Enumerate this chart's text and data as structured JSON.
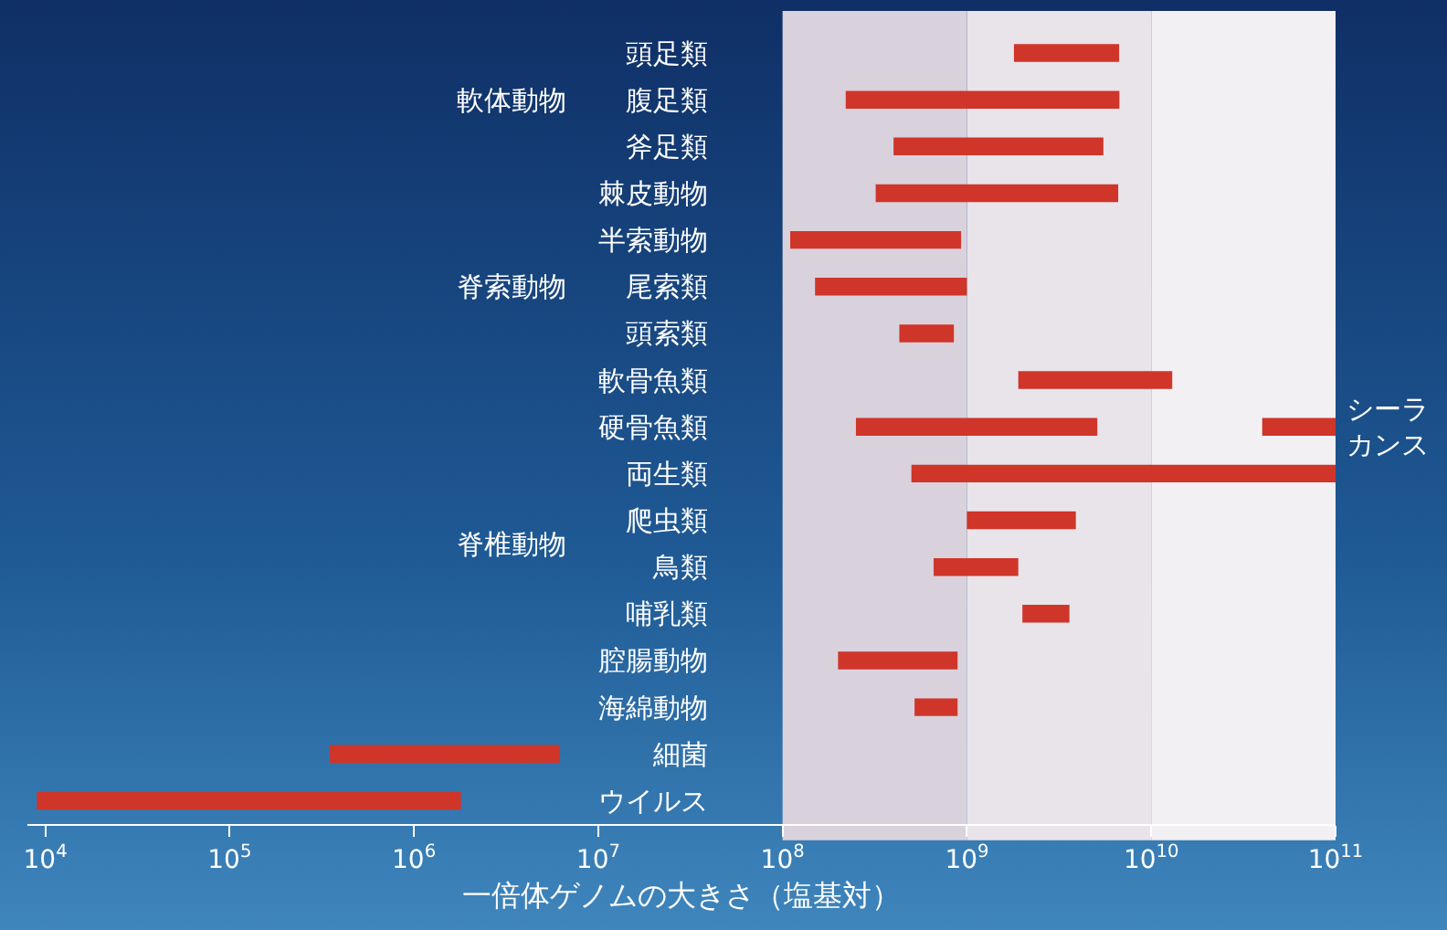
{
  "chart_data": {
    "type": "bar",
    "orientation": "horizontal",
    "log": "x",
    "xlabel": "一倍体ゲノムの大きさ（塩基対）",
    "categories": [
      "頭足類",
      "腹足類",
      "斧足類",
      "棘皮動物",
      "半索動物",
      "尾索類",
      "頭索類",
      "軟骨魚類",
      "硬骨魚類",
      "両生類",
      "爬虫類",
      "鳥類",
      "哺乳類",
      "腔腸動物",
      "海綿動物",
      "細菌",
      "ウイルス"
    ],
    "series": [
      {
        "color": "#d0352a",
        "base": [
          1800000000,
          220000000,
          400000000,
          320000000,
          110000000,
          150000000,
          430000000,
          1900000000,
          250000000,
          500000000,
          1000000000,
          660000000,
          2000000000,
          200000000,
          520000000,
          350000,
          9000
        ],
        "values": [
          4900000000,
          6500000000,
          5100000000,
          6300000000,
          820000000,
          850000000,
          420000000,
          11100000000,
          4850000000,
          99500000000,
          2900000000,
          1240000000,
          1600000000,
          690000000,
          370000000,
          5850000,
          1791000
        ]
      },
      {
        "name": "シーラカンス",
        "color": "#d0352a",
        "base": [
          null,
          null,
          null,
          null,
          null,
          null,
          null,
          null,
          40000000000,
          null,
          null,
          null,
          null,
          null,
          null,
          null,
          null
        ],
        "values": [
          null,
          null,
          null,
          null,
          null,
          null,
          null,
          null,
          60000000000,
          null,
          null,
          null,
          null,
          null,
          null,
          null,
          null
        ]
      }
    ],
    "annotations": [
      "軟体動物",
      "脊索動物",
      "脊椎動物"
    ],
    "bands": [
      {
        "axis": "x",
        "from": 100000000,
        "to": 1000000000,
        "color": "#d9d2dc"
      },
      {
        "axis": "x",
        "from": 1000000000,
        "to": 10000000000,
        "color": "#e9e4ea"
      },
      {
        "axis": "x",
        "from": 10000000000,
        "to": 100000000000,
        "color": "#f3f0f3"
      }
    ],
    "xlim": [
      8000,
      100000000000
    ],
    "xticks": [
      {
        "value": 10000,
        "label": "10$^{4}$"
      },
      {
        "value": 100000,
        "label": "10$^{5}$"
      },
      {
        "value": 1000000,
        "label": "10$^{6}$"
      },
      {
        "value": 10000000,
        "label": "10$^{7}$"
      },
      {
        "value": 100000000,
        "label": "10$^{8}$"
      },
      {
        "value": 1000000000,
        "label": "10$^{9}$"
      },
      {
        "value": 10000000000,
        "label": "10$^{10}$"
      },
      {
        "value": 100000000000,
        "label": "10$^{11}$"
      }
    ],
    "grid": false
  }
}
